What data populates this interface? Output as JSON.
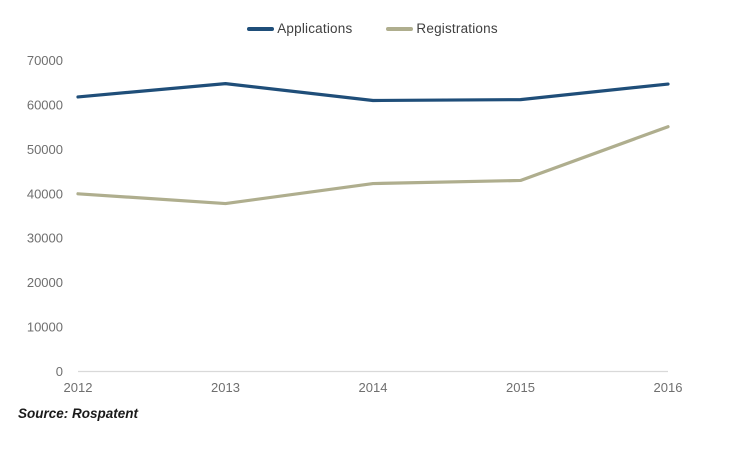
{
  "source": "Source: Rospatent",
  "colors": {
    "background": "#ffffff",
    "axis_line": "#d9d9d9",
    "tick_label": "#6f6f6f",
    "legend_text": "#404040",
    "applications_line": "#1f4e79",
    "registrations_line": "#afae8e"
  },
  "chart_data": {
    "type": "line",
    "title": "",
    "xlabel": "",
    "ylabel": "",
    "categories": [
      "2012",
      "2013",
      "2014",
      "2015",
      "2016"
    ],
    "series": [
      {
        "name": "Applications",
        "color": "#1f4e79",
        "values": [
          61800,
          64800,
          61000,
          61200,
          64700
        ]
      },
      {
        "name": "Registrations",
        "color": "#afae8e",
        "values": [
          40000,
          37800,
          42300,
          43000,
          55100
        ]
      }
    ],
    "ylim": [
      0,
      70000
    ],
    "yticks": [
      0,
      10000,
      20000,
      30000,
      40000,
      50000,
      60000,
      70000
    ],
    "grid": false,
    "markers": false,
    "legend_position": "top-center"
  }
}
